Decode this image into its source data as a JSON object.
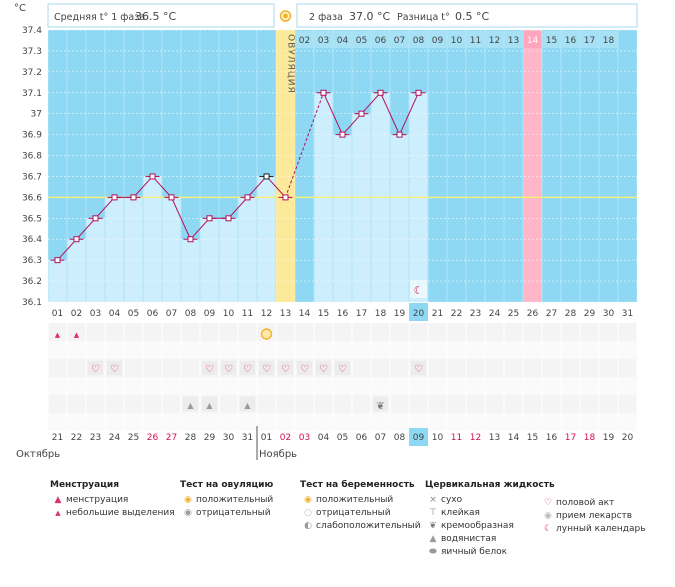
{
  "header": {
    "unit": "°C",
    "phase1_label": "Средняя t° 1 фаза",
    "phase1_value": "36.5 °C",
    "phase2_label": "2 фаза",
    "phase2_value": "37.0 °C",
    "diff_label": "Разница t°",
    "diff_value": "0.5 °C"
  },
  "ovulation_label": "ОВУЛЯЦИЯ",
  "months": {
    "left": "Октябрь",
    "right": "Ноябрь"
  },
  "colors": {
    "plot_bg": "#8fd8f3",
    "bar": "#cdeefc",
    "line": "#b0105a",
    "ovulation": "#fde99a",
    "highlight": "#ffb6c8",
    "coverline": "#f5ee7a",
    "today": "#8fd8f3",
    "red_date": "#d01050"
  },
  "chart_data": {
    "type": "line",
    "ylim": [
      36.1,
      37.4
    ],
    "y_ticks": [
      "37.4",
      "37.3",
      "37.2",
      "37.1",
      "37",
      "36.9",
      "36.8",
      "36.7",
      "36.6",
      "36.5",
      "36.4",
      "36.3",
      "36.2",
      "36.1"
    ],
    "coverline": 36.6,
    "cycle_days": [
      "01",
      "02",
      "03",
      "04",
      "05",
      "06",
      "07",
      "08",
      "09",
      "10",
      "11",
      "12",
      "13",
      "14",
      "15",
      "16",
      "17",
      "18",
      "19",
      "20",
      "21",
      "22",
      "23",
      "24",
      "25",
      "26",
      "27",
      "28",
      "29",
      "30",
      "31"
    ],
    "top_phase2_days": [
      "02",
      "03",
      "04",
      "05",
      "06",
      "07",
      "08",
      "09",
      "10",
      "11",
      "12",
      "13",
      "14",
      "15",
      "16",
      "17",
      "18"
    ],
    "temperatures": [
      36.3,
      36.4,
      36.5,
      36.6,
      36.6,
      36.7,
      36.6,
      36.4,
      36.5,
      36.5,
      36.6,
      36.7,
      36.6,
      null,
      37.1,
      36.9,
      37.0,
      37.1,
      36.9,
      37.1
    ],
    "dashed_segment": [
      13,
      15
    ],
    "ovulation_day": 13,
    "highlight_day": 26,
    "today_day": 20,
    "moon_day": 20,
    "calendar_dates": [
      "21",
      "22",
      "23",
      "24",
      "25",
      "26",
      "27",
      "28",
      "29",
      "30",
      "31",
      "01",
      "02",
      "03",
      "04",
      "05",
      "06",
      "07",
      "08",
      "09",
      "10",
      "11",
      "12",
      "13",
      "14",
      "15",
      "16",
      "17",
      "18",
      "19",
      "20"
    ],
    "red_dates": [
      6,
      7,
      13,
      14,
      22,
      23,
      28,
      29
    ],
    "menstruation_days": [
      1,
      2
    ],
    "ovulation_test_days": [
      12
    ],
    "intercourse_days": [
      3,
      4,
      9,
      10,
      11,
      12,
      13,
      14,
      15,
      16,
      20
    ],
    "watery_days": [
      8,
      9,
      11
    ],
    "creamy_days": [
      18
    ]
  },
  "legend": {
    "menstruation": {
      "title": "Менструация",
      "items": [
        "менструация",
        "небольшие выделения"
      ]
    },
    "ovulation_test": {
      "title": "Тест на овуляцию",
      "items": [
        "положительный",
        "отрицательный"
      ]
    },
    "pregnancy_test": {
      "title": "Тест на беременность",
      "items": [
        "положительный",
        "отрицательный",
        "слабоположительный"
      ]
    },
    "cervical": {
      "title": "Цервикальная жидкость",
      "items": [
        "сухо",
        "клейкая",
        "кремообразная",
        "водянистая",
        "яичный белок"
      ]
    },
    "other": {
      "items": [
        "половой акт",
        "прием лекарств",
        "лунный календарь"
      ]
    }
  }
}
